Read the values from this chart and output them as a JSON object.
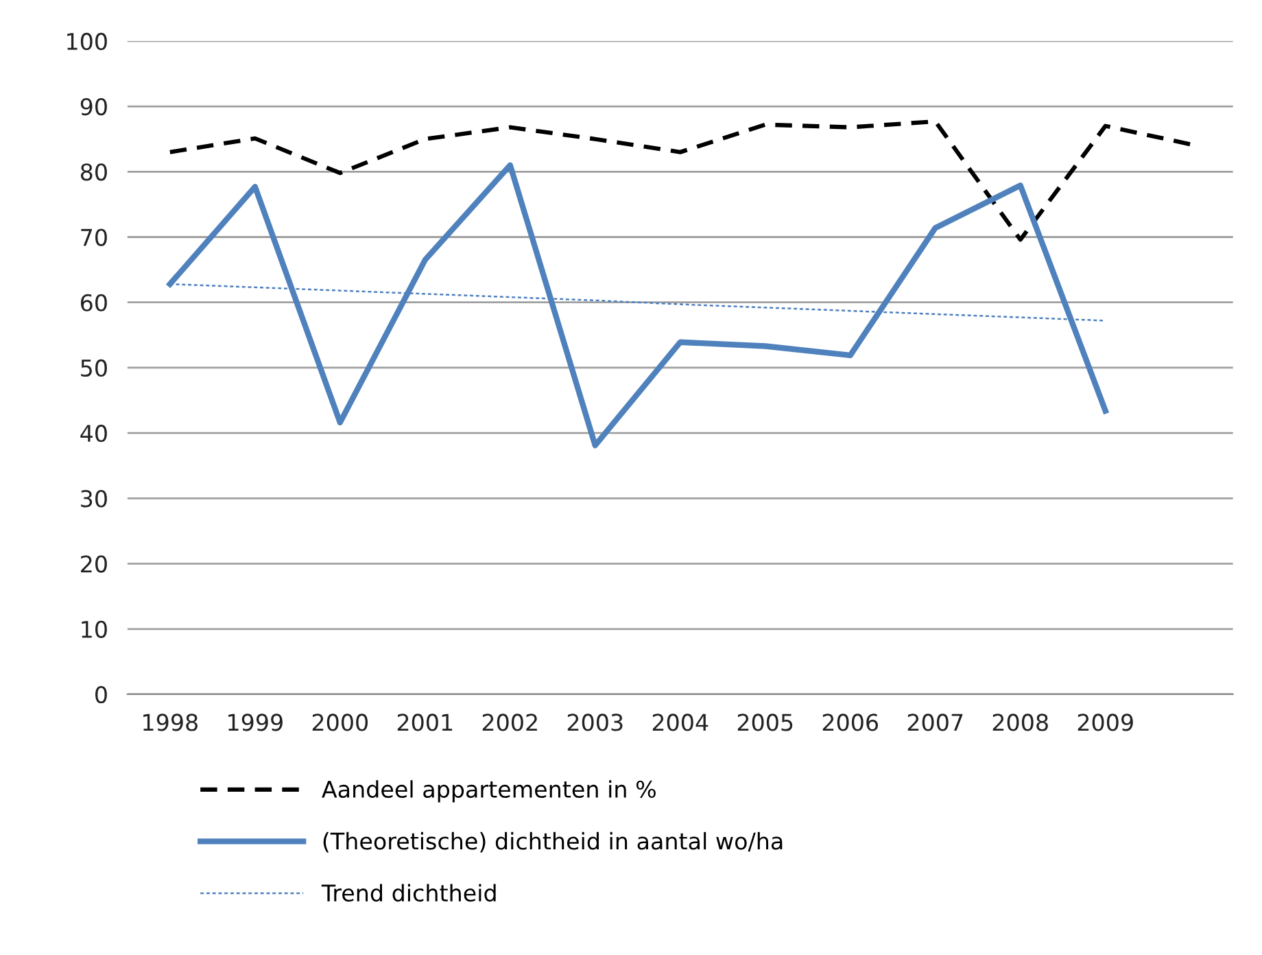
{
  "chart_data": {
    "type": "line",
    "categories": [
      "1998",
      "1999",
      "2000",
      "2001",
      "2002",
      "2003",
      "2004",
      "2005",
      "2006",
      "2007",
      "2008",
      "2009",
      null
    ],
    "series": [
      {
        "name": "Aandeel appartementen in %",
        "color": "#000000",
        "line_style": "dashed",
        "values": [
          83.0,
          85.1,
          79.8,
          85.0,
          86.8,
          85.0,
          83.0,
          87.2,
          86.8,
          87.7,
          69.6,
          87.0,
          84.2
        ]
      },
      {
        "name": "(Theoretische) dichtheid in aantal wo/ha",
        "color": "#4f81bd",
        "line_style": "solid",
        "values": [
          62.8,
          77.7,
          41.6,
          66.5,
          81.0,
          38.1,
          53.9,
          53.3,
          51.9,
          71.4,
          77.9,
          43.4,
          null
        ]
      },
      {
        "name": "Trend dichtheid",
        "color": "#4f81bd",
        "line_style": "dotted",
        "values": [
          62.8,
          62.3,
          61.8,
          61.3,
          60.8,
          60.3,
          59.7,
          59.2,
          58.7,
          58.2,
          57.7,
          57.2,
          null
        ]
      }
    ],
    "ylim": [
      0,
      100
    ],
    "yticks": [
      0,
      10,
      20,
      30,
      40,
      50,
      60,
      70,
      80,
      90,
      100
    ],
    "grid": "y",
    "legend": "bottom",
    "marker": "none"
  }
}
